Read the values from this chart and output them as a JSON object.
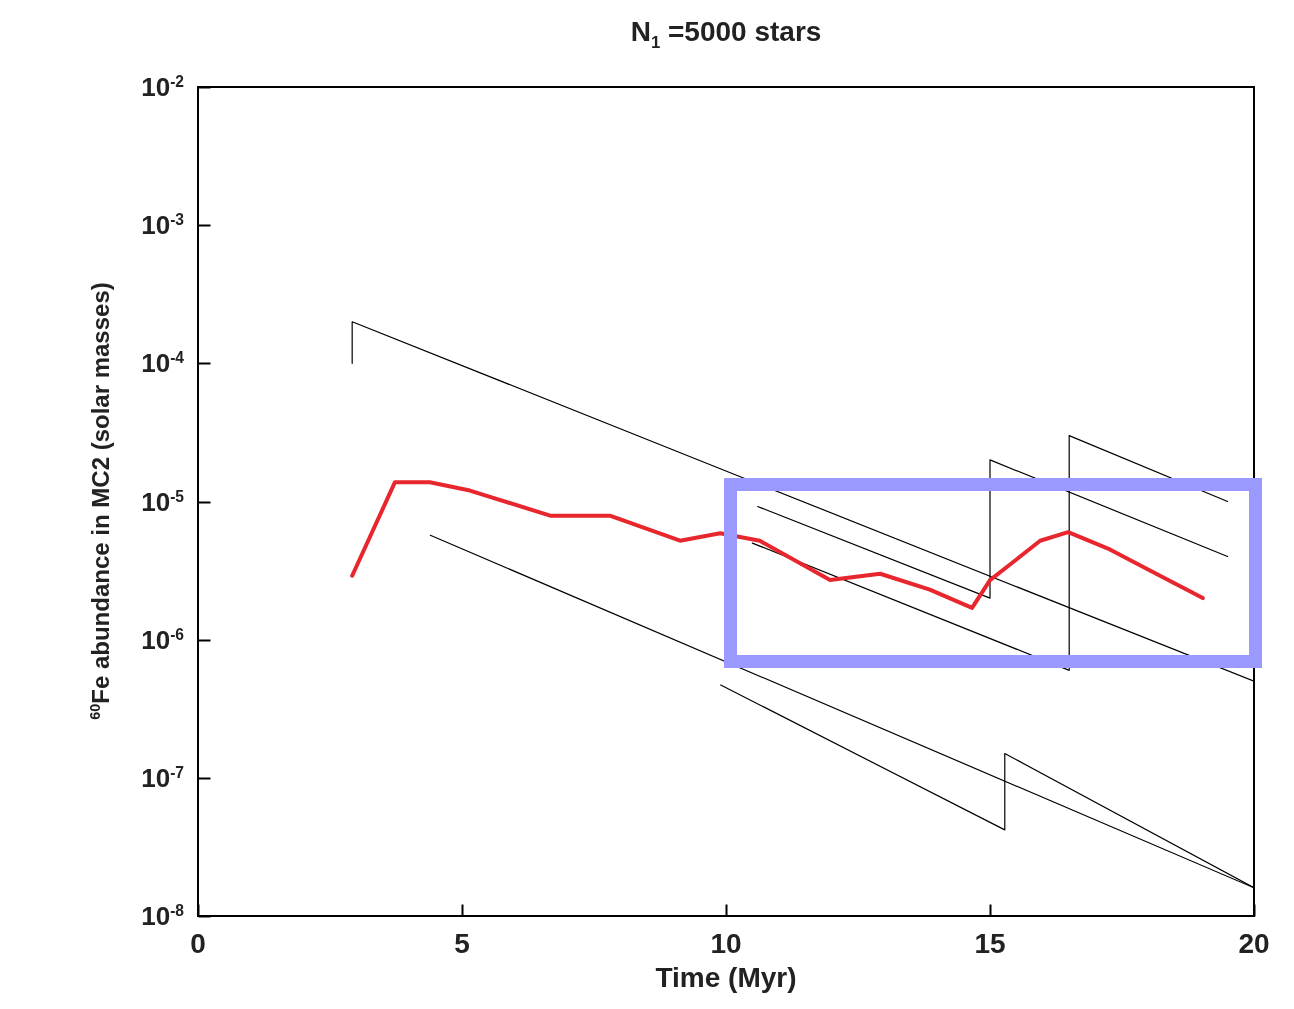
{
  "chart_data": {
    "type": "line",
    "title": "N$_{1}$ =5000 stars",
    "xlabel": "Time (Myr)",
    "ylabel": "$^{60}$Fe abundance in MC2 (solar masses)",
    "log": "y",
    "grid": false,
    "legend": false,
    "xlim": [
      0,
      20
    ],
    "xticks": [
      0,
      5,
      10,
      15,
      20
    ],
    "ylim": [
      1e-08,
      0.01
    ],
    "yticks": [
      {
        "value": 1e-08,
        "label": "10$^{-8}$"
      },
      {
        "value": 1e-07,
        "label": "10$^{-7}$"
      },
      {
        "value": 1e-06,
        "label": "10$^{-6}$"
      },
      {
        "value": 1e-05,
        "label": "10$^{-5}$"
      },
      {
        "value": 0.0001,
        "label": "10$^{-4}$"
      },
      {
        "value": 0.001,
        "label": "10$^{-3}$"
      },
      {
        "value": 0.01,
        "label": "10$^{-2}$"
      }
    ],
    "series": [
      {
        "color": "#000000",
        "x": [
          2.92,
          2.92,
          10.2,
          20
        ],
        "values": [
          0.0001,
          0.0002,
          1.55e-05,
          5e-07
        ]
      },
      {
        "color": "#000000",
        "x": [
          4.4,
          20
        ],
        "values": [
          5.7e-06,
          1.6e-08
        ]
      },
      {
        "color": "#000000",
        "x": [
          9.9,
          15.28,
          15.28,
          20
        ],
        "values": [
          4.7e-07,
          4.2e-08,
          1.5e-07,
          1.6e-08
        ]
      },
      {
        "color": "#000000",
        "x": [
          10.6,
          15.0,
          15.0,
          19.5
        ],
        "values": [
          9.2e-06,
          2e-06,
          2e-05,
          4e-06
        ]
      },
      {
        "color": "#000000",
        "x": [
          10.5,
          16.5,
          16.5,
          19.5
        ],
        "values": [
          5e-06,
          6e-07,
          3e-05,
          1e-05
        ]
      },
      {
        "color": "#e8262e",
        "x": [
          2.92,
          3.73,
          4.39,
          5.15,
          6.67,
          7.8,
          9.13,
          9.89,
          10.64,
          11.97,
          12.92,
          13.86,
          14.66,
          15.0,
          15.38,
          15.95,
          16.48,
          17.27,
          18.22,
          19.03
        ],
        "values": [
          2.9e-06,
          1.38e-05,
          1.38e-05,
          1.2e-05,
          7.9e-06,
          7.9e-06,
          5.2e-06,
          5.9e-06,
          5.2e-06,
          2.7e-06,
          3e-06,
          2.3e-06,
          1.7e-06,
          2.7e-06,
          3.5e-06,
          5.2e-06,
          6e-06,
          4.5e-06,
          2.9e-06,
          2e-06
        ]
      }
    ]
  }
}
